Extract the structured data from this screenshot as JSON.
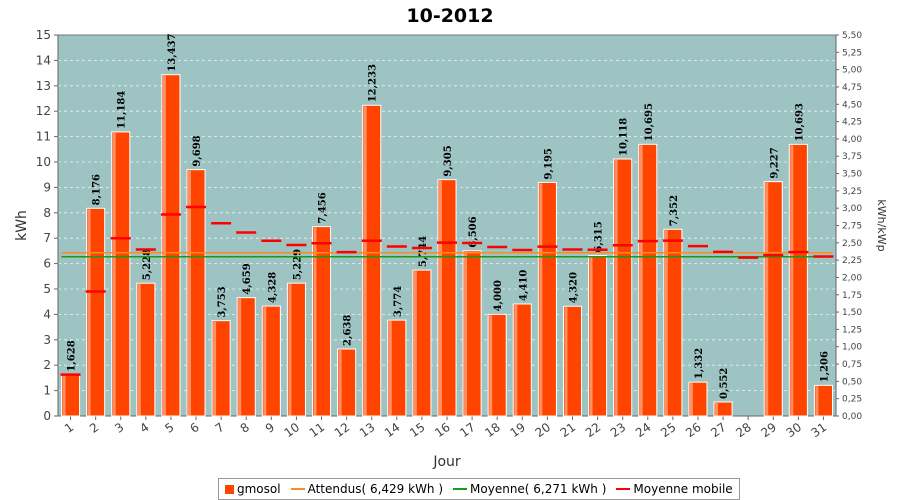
{
  "chart_data": {
    "type": "bar",
    "title": "10-2012",
    "xlabel": "Jour",
    "ylabel": "kWh",
    "y2label": "kWh/kWp",
    "ylim": [
      0,
      15
    ],
    "y2lim": [
      0,
      5.5
    ],
    "y_ticks": [
      "0",
      "1",
      "2",
      "3",
      "4",
      "5",
      "6",
      "7",
      "8",
      "9",
      "10",
      "11",
      "12",
      "13",
      "14",
      "15"
    ],
    "y2_ticks": [
      "0,00",
      "0,25",
      "0,50",
      "0,75",
      "1,00",
      "1,25",
      "1,50",
      "1,75",
      "2,00",
      "2,25",
      "2,50",
      "2,75",
      "3,00",
      "3,25",
      "3,50",
      "3,75",
      "4,00",
      "4,25",
      "4,50",
      "4,75",
      "5,00",
      "5,25",
      "5,50"
    ],
    "categories": [
      "1",
      "2",
      "3",
      "4",
      "5",
      "6",
      "7",
      "8",
      "9",
      "10",
      "11",
      "12",
      "13",
      "14",
      "15",
      "16",
      "17",
      "18",
      "19",
      "20",
      "21",
      "22",
      "23",
      "24",
      "25",
      "26",
      "27",
      "28",
      "29",
      "30",
      "31"
    ],
    "series": [
      {
        "name": "gmosol",
        "color": "#ff4400",
        "values": [
          1.628,
          8.176,
          11.184,
          5.228,
          13.437,
          9.698,
          3.753,
          4.659,
          4.328,
          5.229,
          7.456,
          2.638,
          12.233,
          3.774,
          5.744,
          9.305,
          6.506,
          4.0,
          4.41,
          9.195,
          4.32,
          6.315,
          10.118,
          10.695,
          7.352,
          1.332,
          0.552,
          null,
          9.227,
          10.693,
          1.206
        ],
        "labels": [
          "1,628",
          "8,176",
          "11,184",
          "5,228",
          "13,437",
          "9,698",
          "3,753",
          "4,659",
          "4,328",
          "5,229",
          "7,456",
          "2,638",
          "12,233",
          "3,774",
          "5,744",
          "9,305",
          "6,506",
          "4,000",
          "4,410",
          "9,195",
          "4,320",
          "6,315",
          "10,118",
          "10,695",
          "7,352",
          "1,332",
          "0,552",
          "",
          "9,227",
          "10,693",
          "1,206"
        ]
      },
      {
        "name": "Attendus( 6,429 kWh )",
        "color": "#ff8c1a",
        "constant": 6.429
      },
      {
        "name": "Moyenne( 6,271 kWh )",
        "color": "#1a9a1a",
        "constant": 6.271
      },
      {
        "name": "Moyenne mobile",
        "color": "#ff0000",
        "values": [
          1.628,
          4.902,
          6.996,
          6.554,
          7.935,
          8.229,
          7.589,
          7.223,
          6.902,
          6.734,
          6.8,
          6.453,
          6.898,
          6.675,
          6.613,
          6.828,
          6.809,
          6.653,
          6.535,
          6.668,
          6.556,
          6.544,
          6.72,
          6.886,
          6.905,
          6.69,
          6.463,
          6.233,
          6.336,
          6.45,
          6.28
        ]
      }
    ],
    "grid": true,
    "legend": "bottom"
  }
}
